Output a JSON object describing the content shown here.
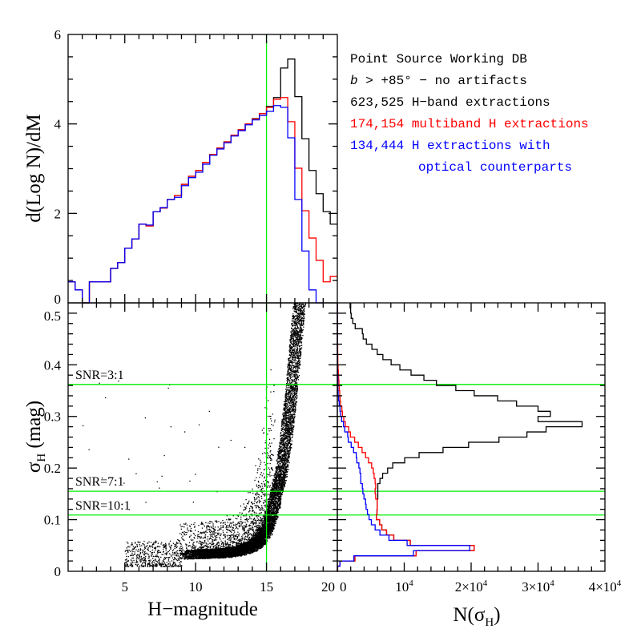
{
  "colors": {
    "all": "#000000",
    "multiband": "#ff0000",
    "optical": "#0000ff",
    "reference": "#00ee00"
  },
  "legend": {
    "line1": "Point Source Working DB",
    "line2_italic": "b",
    "line2_rest": " > +85° − no artifacts",
    "line3": "623,525 H−band extractions",
    "line4": "174,154 multiband H extractions",
    "line5": "134,444 H extractions with",
    "line6": "optical counterparts"
  },
  "chart_data": [
    {
      "panel": "top",
      "type": "histogram",
      "ylabel": "d(Log N)/dM",
      "xlim": [
        1,
        20
      ],
      "ylim": [
        0,
        6
      ],
      "ytick_labels": [
        "0",
        "2",
        "4",
        "6"
      ],
      "bin_start": 1.0,
      "bin_width": 0.5,
      "vline_x": 15,
      "series": [
        {
          "name": "623,525 H-band extractions",
          "color": "#000000",
          "values": [
            0.47,
            0.29,
            0,
            0.47,
            0.47,
            0.47,
            0.77,
            0.9,
            1.22,
            1.43,
            1.76,
            1.72,
            2.04,
            2.12,
            2.31,
            2.4,
            2.65,
            2.83,
            2.96,
            3.14,
            3.32,
            3.46,
            3.6,
            3.75,
            3.87,
            4.0,
            4.12,
            4.23,
            4.39,
            4.59,
            5.25,
            5.45,
            4.61,
            3.67,
            2.96,
            2.44,
            2.04,
            1.76
          ]
        },
        {
          "name": "174,154 multiband H extractions",
          "color": "#ff0000",
          "values": [
            0.47,
            0.29,
            0,
            0.47,
            0.47,
            0.47,
            0.77,
            0.9,
            1.22,
            1.43,
            1.76,
            1.72,
            2.04,
            2.12,
            2.31,
            2.4,
            2.65,
            2.83,
            2.96,
            3.14,
            3.32,
            3.46,
            3.6,
            3.75,
            3.87,
            4.0,
            4.11,
            4.23,
            4.37,
            4.55,
            4.59,
            4.05,
            3.01,
            2.06,
            1.45,
            0.95,
            0.47,
            0.59
          ]
        },
        {
          "name": "134,444 H extractions with optical counterparts",
          "color": "#0000ff",
          "values": [
            0.47,
            0.29,
            0,
            0.47,
            0.47,
            0.47,
            0.77,
            0.9,
            1.22,
            1.43,
            1.76,
            1.74,
            2.04,
            2.13,
            2.31,
            2.36,
            2.62,
            2.8,
            2.92,
            3.1,
            3.3,
            3.44,
            3.58,
            3.73,
            3.85,
            3.98,
            4.09,
            4.19,
            4.28,
            4.41,
            4.37,
            3.69,
            2.31,
            1.16,
            0.29,
            0,
            null,
            null
          ]
        }
      ]
    },
    {
      "panel": "bottom-left",
      "type": "scatter",
      "xlabel": "H−magnitude",
      "ylabel_main": "σ",
      "ylabel_sub": "H",
      "ylabel_unit": "(mag)",
      "xlim": [
        1,
        20
      ],
      "ylim": [
        0,
        0.52
      ],
      "xtick_labels": [
        "5",
        "10",
        "15",
        "20"
      ],
      "ytick_labels": [
        "0",
        "0.1",
        "0.2",
        "0.3",
        "0.4",
        "0.5"
      ],
      "vline_x": 15,
      "locus": [
        [
          8.8,
          0.033
        ],
        [
          10,
          0.034
        ],
        [
          12,
          0.036
        ],
        [
          13,
          0.04
        ],
        [
          14,
          0.05
        ],
        [
          14.5,
          0.062
        ],
        [
          15,
          0.083
        ],
        [
          15.4,
          0.115
        ],
        [
          15.7,
          0.155
        ],
        [
          16,
          0.19
        ],
        [
          16.3,
          0.245
        ],
        [
          16.7,
          0.34
        ],
        [
          17.0,
          0.43
        ],
        [
          17.3,
          0.52
        ]
      ],
      "snr_lines": [
        {
          "label": "SNR=3:1",
          "sigma": 0.362
        },
        {
          "label": "SNR=7:1",
          "sigma": 0.155
        },
        {
          "label": "SNR=10:1",
          "sigma": 0.109
        }
      ]
    },
    {
      "panel": "bottom-right",
      "type": "histogram",
      "orientation": "horizontal",
      "xlabel_main": "N(σ",
      "xlabel_sub": "H",
      "xlabel_end": ")",
      "xlim": [
        0,
        40000
      ],
      "ylim": [
        0,
        0.52
      ],
      "xtick_labels": [
        {
          "pre": "0",
          "exp": ""
        },
        {
          "pre": "10",
          "exp": "4"
        },
        {
          "pre": "2×10",
          "exp": "4"
        },
        {
          "pre": "3×10",
          "exp": "4"
        },
        {
          "pre": "4×10",
          "exp": "4"
        }
      ],
      "bin_start": 0,
      "bin_width": 0.01,
      "series": [
        {
          "name": "623,525 H-band extractions",
          "color": "#000000",
          "values": [
            50,
            400,
            2630,
            11780,
            20460,
            10900,
            8440,
            7360,
            6650,
            6330,
            5850,
            5930,
            5970,
            5970,
            6050,
            6050,
            6050,
            6370,
            6770,
            7520,
            8280,
            10070,
            12220,
            15800,
            19620,
            24160,
            28340,
            31200,
            36580,
            30000,
            31840,
            30000,
            26790,
            23960,
            20460,
            17710,
            14810,
            12940,
            11020,
            9350,
            8040,
            6810,
            5970,
            5170,
            4340,
            3860,
            3740,
            2670,
            2310,
            2070,
            1990,
            1910
          ]
        },
        {
          "name": "174,154 multiband H extractions",
          "color": "#ff0000",
          "values": [
            50,
            400,
            2630,
            11780,
            20460,
            10900,
            8440,
            7360,
            6650,
            6330,
            5850,
            5930,
            5970,
            5970,
            5730,
            5650,
            5730,
            5650,
            5500,
            5370,
            5130,
            4660,
            4220,
            3700,
            3140,
            2590,
            1950,
            1710,
            1190,
            960,
            760,
            680,
            480,
            400,
            360,
            280,
            240,
            200,
            160,
            120,
            80,
            80,
            60,
            60,
            40,
            40,
            40,
            40,
            40,
            40,
            40,
            40
          ]
        },
        {
          "name": "134,444 H extractions with optical counterparts",
          "color": "#0000ff",
          "values": [
            0,
            400,
            2470,
            11380,
            19780,
            10430,
            7720,
            6370,
            5650,
            5090,
            4740,
            4500,
            4300,
            4220,
            3980,
            3820,
            3740,
            3500,
            3500,
            3380,
            3220,
            2910,
            2830,
            2430,
            2070,
            1630,
            1550,
            1110,
            920,
            640,
            480,
            400,
            280,
            200,
            120,
            80,
            80,
            80,
            40,
            20,
            20,
            20,
            0,
            0,
            0,
            0,
            0,
            0,
            0,
            0,
            0,
            0
          ]
        }
      ],
      "snr_lines_sigma": [
        0.362,
        0.155,
        0.109
      ]
    }
  ]
}
